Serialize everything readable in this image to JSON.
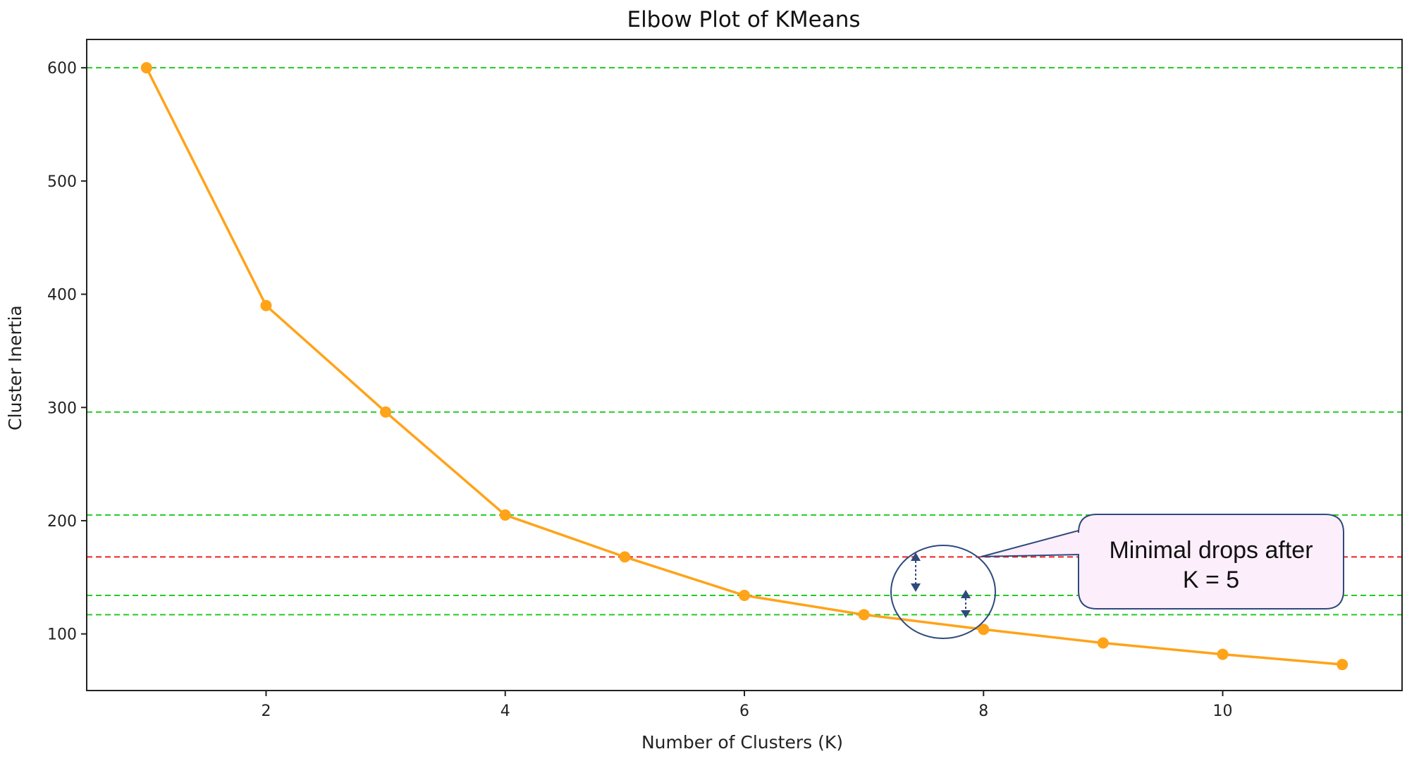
{
  "chart_data": {
    "type": "line",
    "title": "Elbow Plot of KMeans",
    "xlabel": "Number of Clusters (K)",
    "ylabel": "Cluster Inertia",
    "x": [
      1,
      2,
      3,
      4,
      5,
      6,
      7,
      8,
      9,
      10,
      11
    ],
    "series": [
      {
        "values": [
          600,
          390,
          296,
          205,
          168,
          134,
          117,
          104,
          92,
          82,
          73
        ],
        "color": "#ffa319"
      }
    ],
    "xlim": [
      0.5,
      11.5
    ],
    "ylim": [
      50,
      625
    ],
    "xticks": [
      2,
      4,
      6,
      8,
      10
    ],
    "yticks": [
      100,
      200,
      300,
      400,
      500,
      600
    ],
    "reference_lines": [
      {
        "y": 600,
        "color": "#22cc22",
        "style": "dashed"
      },
      {
        "y": 296,
        "color": "#22cc22",
        "style": "dashed"
      },
      {
        "y": 205,
        "color": "#22cc22",
        "style": "dashed"
      },
      {
        "y": 168,
        "color": "#ee2222",
        "style": "dashed"
      },
      {
        "y": 134,
        "color": "#22cc22",
        "style": "dashed"
      },
      {
        "y": 117,
        "color": "#22cc22",
        "style": "dashed"
      }
    ],
    "annotation": {
      "text_line1": "Minimal drops after",
      "text_line2": "K = 5",
      "box_fill": "#fdeefb",
      "box_stroke": "#2f4a7c"
    },
    "grid": false,
    "legend": "none"
  }
}
